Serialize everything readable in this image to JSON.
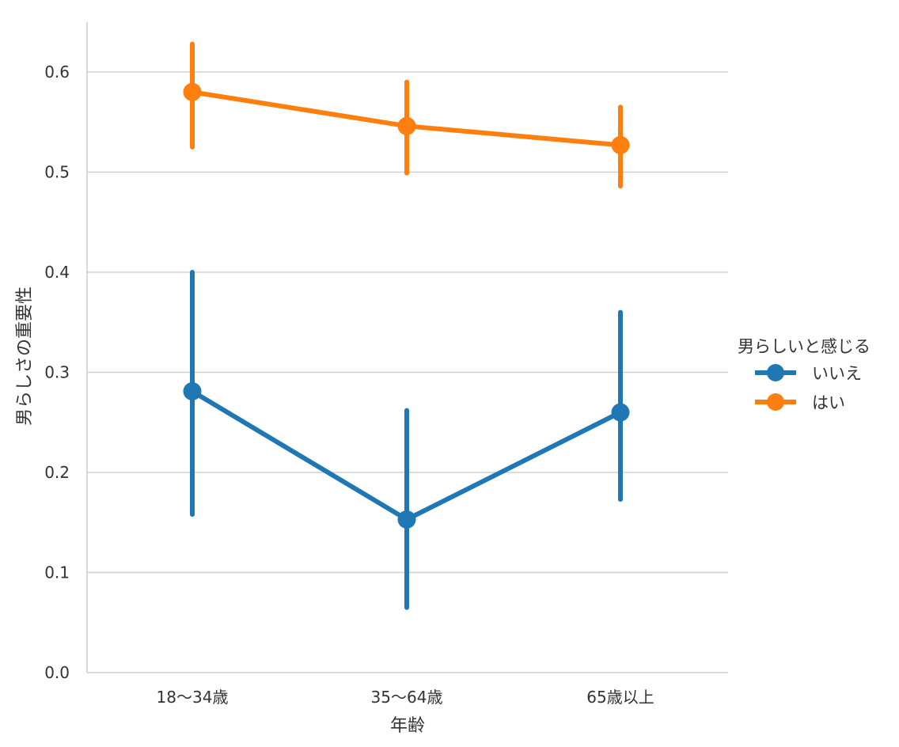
{
  "chart_data": {
    "type": "line",
    "xlabel": "年齢",
    "ylabel": "男らしさの重要性",
    "categories": [
      "18〜34歳",
      "35〜64歳",
      "65歳以上"
    ],
    "ylim": [
      0,
      0.65
    ],
    "yticks": [
      0.0,
      0.1,
      0.2,
      0.3,
      0.4,
      0.5,
      0.6
    ],
    "ytick_labels": [
      "0.0",
      "0.1",
      "0.2",
      "0.3",
      "0.4",
      "0.5",
      "0.6"
    ],
    "grid": "horizontal",
    "legend": {
      "title": "男らしいと感じる",
      "placement": "right"
    },
    "series": [
      {
        "name": "いいえ",
        "color": "#1f77b4",
        "values": [
          0.281,
          0.153,
          0.26
        ],
        "error_low": [
          0.158,
          0.065,
          0.173
        ],
        "error_high": [
          0.4,
          0.262,
          0.36
        ]
      },
      {
        "name": "はい",
        "color": "#ff7f0e",
        "values": [
          0.58,
          0.546,
          0.527
        ],
        "error_low": [
          0.525,
          0.499,
          0.486
        ],
        "error_high": [
          0.628,
          0.59,
          0.565
        ]
      }
    ]
  }
}
